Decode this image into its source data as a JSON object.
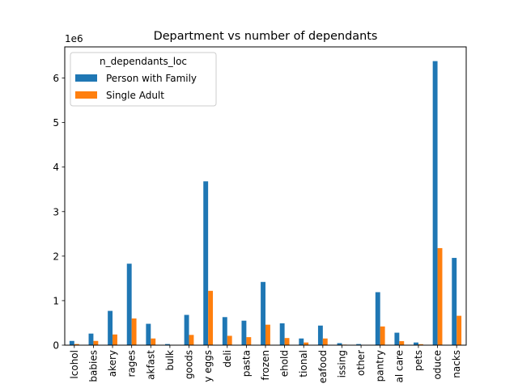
{
  "chart_data": {
    "type": "bar",
    "title": "Department vs number of dependants",
    "xlabel": "",
    "ylabel": "",
    "y_scale_label": "1e6",
    "ylim": [
      0,
      6700000
    ],
    "yticks": [
      0,
      1000000,
      2000000,
      3000000,
      4000000,
      5000000,
      6000000
    ],
    "ytick_labels": [
      "0",
      "1",
      "2",
      "3",
      "4",
      "5",
      "6"
    ],
    "grid": false,
    "legend": {
      "title": "n_dependants_loc",
      "placement": "top-left"
    },
    "categories": [
      "lcohol",
      "babies",
      "akery",
      "rages",
      "akfast",
      "bulk",
      "goods",
      "y eggs",
      "deli",
      "pasta",
      "frozen",
      "ehold",
      "tional",
      "eafood",
      "issing",
      "other",
      "pantry",
      "al care",
      "pets",
      "oduce",
      "nacks"
    ],
    "series": [
      {
        "name": "Person with Family",
        "color": "#1f77b4",
        "values": [
          95000,
          260000,
          770000,
          1830000,
          480000,
          25000,
          680000,
          3680000,
          630000,
          550000,
          1420000,
          490000,
          150000,
          440000,
          45000,
          25000,
          1190000,
          280000,
          60000,
          6380000,
          1960000
        ]
      },
      {
        "name": "Single Adult",
        "color": "#ff7f0e",
        "values": [
          25000,
          95000,
          240000,
          600000,
          150000,
          8000,
          230000,
          1220000,
          210000,
          180000,
          460000,
          160000,
          60000,
          150000,
          12000,
          8000,
          420000,
          90000,
          22000,
          2180000,
          660000
        ]
      }
    ]
  }
}
